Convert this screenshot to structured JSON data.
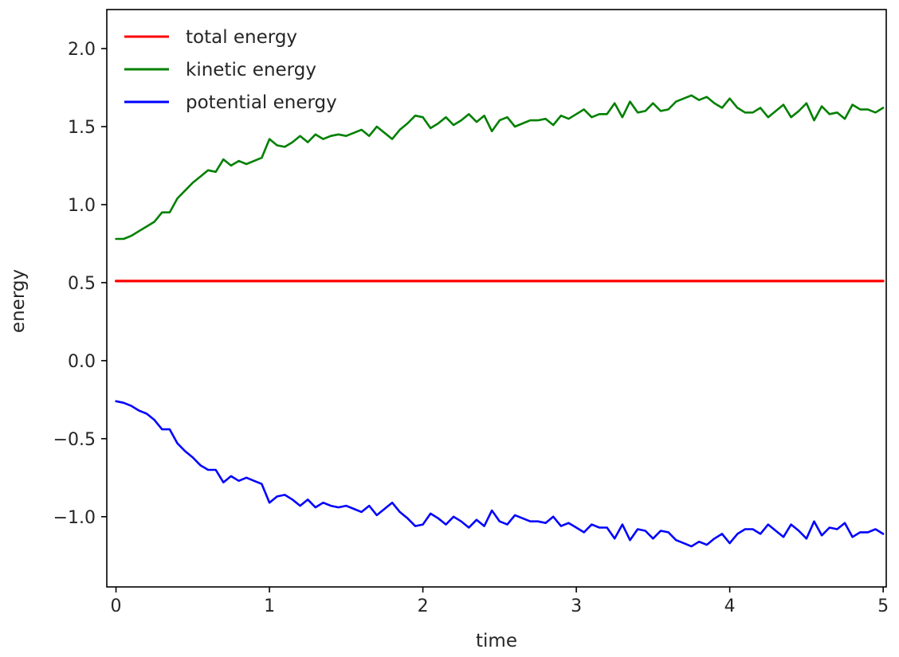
{
  "chart_data": {
    "type": "line",
    "title": "",
    "xlabel": "time",
    "ylabel": "energy",
    "xlim": [
      -0.06,
      5.02
    ],
    "ylim": [
      -1.45,
      2.25
    ],
    "xticks": [
      0,
      1,
      2,
      3,
      4,
      5
    ],
    "xtick_labels": [
      "0",
      "1",
      "2",
      "3",
      "4",
      "5"
    ],
    "yticks": [
      -1.0,
      -0.5,
      0.0,
      0.5,
      1.0,
      1.5,
      2.0
    ],
    "ytick_labels": [
      "−1.0",
      "−0.5",
      "0.0",
      "0.5",
      "1.0",
      "1.5",
      "2.0"
    ],
    "grid": false,
    "legend_position": "top-left",
    "x": [
      0,
      0.05,
      0.1,
      0.15,
      0.2,
      0.25,
      0.3,
      0.35,
      0.4,
      0.45,
      0.5,
      0.55,
      0.6,
      0.65,
      0.7,
      0.75,
      0.8,
      0.85,
      0.9,
      0.95,
      1.0,
      1.05,
      1.1,
      1.15,
      1.2,
      1.25,
      1.3,
      1.35,
      1.4,
      1.45,
      1.5,
      1.55,
      1.6,
      1.65,
      1.7,
      1.75,
      1.8,
      1.85,
      1.9,
      1.95,
      2.0,
      2.05,
      2.1,
      2.15,
      2.2,
      2.25,
      2.3,
      2.35,
      2.4,
      2.45,
      2.5,
      2.55,
      2.6,
      2.65,
      2.7,
      2.75,
      2.8,
      2.85,
      2.9,
      2.95,
      3.0,
      3.05,
      3.1,
      3.15,
      3.2,
      3.25,
      3.3,
      3.35,
      3.4,
      3.45,
      3.5,
      3.55,
      3.6,
      3.65,
      3.7,
      3.75,
      3.8,
      3.85,
      3.9,
      3.95,
      4.0,
      4.05,
      4.1,
      4.15,
      4.2,
      4.25,
      4.3,
      4.35,
      4.4,
      4.45,
      4.5,
      4.55,
      4.6,
      4.65,
      4.7,
      4.75,
      4.8,
      4.85,
      4.9,
      4.95,
      5.0
    ],
    "series": [
      {
        "name": "total energy",
        "color": "#ff0000",
        "values": [
          0.51,
          0.51,
          0.51,
          0.51,
          0.51,
          0.51,
          0.51,
          0.51,
          0.51,
          0.51,
          0.51,
          0.51,
          0.51,
          0.51,
          0.51,
          0.51,
          0.51,
          0.51,
          0.51,
          0.51,
          0.51,
          0.51,
          0.51,
          0.51,
          0.51,
          0.51,
          0.51,
          0.51,
          0.51,
          0.51,
          0.51,
          0.51,
          0.51,
          0.51,
          0.51,
          0.51,
          0.51,
          0.51,
          0.51,
          0.51,
          0.51,
          0.51,
          0.51,
          0.51,
          0.51,
          0.51,
          0.51,
          0.51,
          0.51,
          0.51,
          0.51,
          0.51,
          0.51,
          0.51,
          0.51,
          0.51,
          0.51,
          0.51,
          0.51,
          0.51,
          0.51,
          0.51,
          0.51,
          0.51,
          0.51,
          0.51,
          0.51,
          0.51,
          0.51,
          0.51,
          0.51,
          0.51,
          0.51,
          0.51,
          0.51,
          0.51,
          0.51,
          0.51,
          0.51,
          0.51,
          0.51,
          0.51,
          0.51,
          0.51,
          0.51,
          0.51,
          0.51,
          0.51,
          0.51,
          0.51,
          0.51,
          0.51,
          0.51,
          0.51,
          0.51,
          0.51,
          0.51,
          0.51,
          0.51,
          0.51,
          0.51
        ]
      },
      {
        "name": "kinetic energy",
        "color": "#008000",
        "values": [
          0.78,
          0.78,
          0.8,
          0.83,
          0.86,
          0.89,
          0.95,
          0.95,
          1.04,
          1.09,
          1.14,
          1.18,
          1.22,
          1.21,
          1.29,
          1.25,
          1.28,
          1.26,
          1.28,
          1.3,
          1.42,
          1.38,
          1.37,
          1.4,
          1.44,
          1.4,
          1.45,
          1.42,
          1.44,
          1.45,
          1.44,
          1.46,
          1.48,
          1.44,
          1.5,
          1.46,
          1.42,
          1.48,
          1.52,
          1.57,
          1.56,
          1.49,
          1.52,
          1.56,
          1.51,
          1.54,
          1.58,
          1.53,
          1.57,
          1.47,
          1.54,
          1.56,
          1.5,
          1.52,
          1.54,
          1.54,
          1.55,
          1.51,
          1.57,
          1.55,
          1.58,
          1.61,
          1.56,
          1.58,
          1.58,
          1.65,
          1.56,
          1.66,
          1.59,
          1.6,
          1.65,
          1.6,
          1.61,
          1.66,
          1.68,
          1.7,
          1.67,
          1.69,
          1.65,
          1.62,
          1.68,
          1.62,
          1.59,
          1.59,
          1.62,
          1.56,
          1.6,
          1.64,
          1.56,
          1.6,
          1.65,
          1.54,
          1.63,
          1.58,
          1.59,
          1.55,
          1.64,
          1.61,
          1.61,
          1.59,
          1.62
        ]
      },
      {
        "name": "potential energy",
        "color": "#0000ff",
        "values": [
          -0.26,
          -0.27,
          -0.29,
          -0.32,
          -0.34,
          -0.38,
          -0.44,
          -0.44,
          -0.53,
          -0.58,
          -0.62,
          -0.67,
          -0.7,
          -0.7,
          -0.78,
          -0.74,
          -0.77,
          -0.75,
          -0.77,
          -0.79,
          -0.91,
          -0.87,
          -0.86,
          -0.89,
          -0.93,
          -0.89,
          -0.94,
          -0.91,
          -0.93,
          -0.94,
          -0.93,
          -0.95,
          -0.97,
          -0.93,
          -0.99,
          -0.95,
          -0.91,
          -0.97,
          -1.01,
          -1.06,
          -1.05,
          -0.98,
          -1.01,
          -1.05,
          -1.0,
          -1.03,
          -1.07,
          -1.02,
          -1.06,
          -0.96,
          -1.03,
          -1.05,
          -0.99,
          -1.01,
          -1.03,
          -1.03,
          -1.04,
          -1.0,
          -1.06,
          -1.04,
          -1.07,
          -1.1,
          -1.05,
          -1.07,
          -1.07,
          -1.14,
          -1.05,
          -1.15,
          -1.08,
          -1.09,
          -1.14,
          -1.09,
          -1.1,
          -1.15,
          -1.17,
          -1.19,
          -1.16,
          -1.18,
          -1.14,
          -1.11,
          -1.17,
          -1.11,
          -1.08,
          -1.08,
          -1.11,
          -1.05,
          -1.09,
          -1.13,
          -1.05,
          -1.09,
          -1.14,
          -1.03,
          -1.12,
          -1.07,
          -1.08,
          -1.04,
          -1.13,
          -1.1,
          -1.1,
          -1.08,
          -1.11
        ]
      }
    ]
  }
}
